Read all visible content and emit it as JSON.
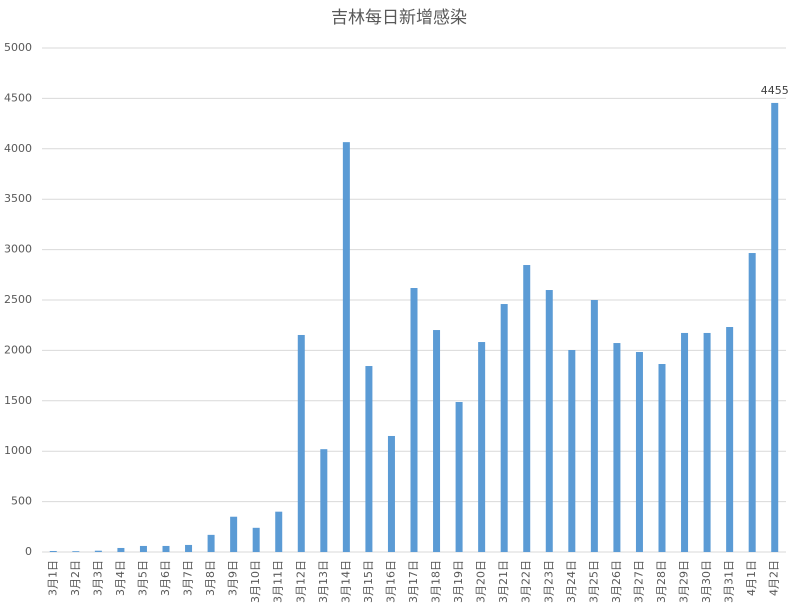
{
  "chart_data": {
    "type": "bar",
    "title": "吉林每日新增感染",
    "categories": [
      "3月1日",
      "3月2日",
      "3月3日",
      "3月4日",
      "3月5日",
      "3月6日",
      "3月7日",
      "3月8日",
      "3月9日",
      "3月10日",
      "3月11日",
      "3月12日",
      "3月13日",
      "3月14日",
      "3月15日",
      "3月16日",
      "3月17日",
      "3月18日",
      "3月19日",
      "3月20日",
      "3月21日",
      "3月22日",
      "3月23日",
      "3月24日",
      "3月25日",
      "3月26日",
      "3月27日",
      "3月28日",
      "3月29日",
      "3月30日",
      "3月31日",
      "4月1日",
      "4月2日"
    ],
    "values": [
      10,
      8,
      13,
      40,
      60,
      60,
      70,
      170,
      350,
      240,
      400,
      2153,
      1020,
      4066,
      1845,
      1151,
      2619,
      2202,
      1488,
      2083,
      2460,
      2847,
      2599,
      2004,
      2500,
      2073,
      1984,
      1865,
      2173,
      2173,
      2232,
      2966,
      4455
    ],
    "color": "#5b9bd5",
    "ylim": [
      0,
      5000
    ],
    "yticks": [
      0,
      500,
      1000,
      1500,
      2000,
      2500,
      3000,
      3500,
      4000,
      4500,
      5000
    ],
    "grid": true
  }
}
